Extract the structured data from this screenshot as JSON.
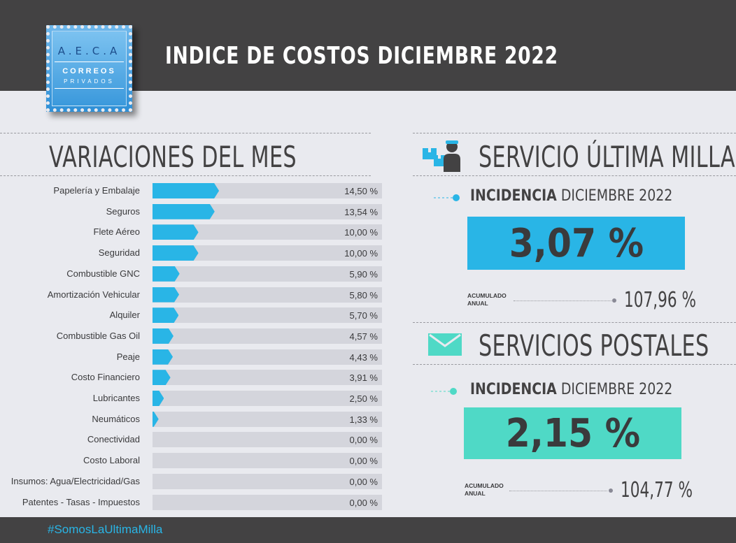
{
  "header": {
    "title": "INDICE DE COSTOS DICIEMBRE 2022",
    "logo": {
      "line1": "A.E.C.A",
      "line2": "CORREOS",
      "line3": "PRIVADOS"
    }
  },
  "variaciones": {
    "title": "VARIACIONES DEL MES"
  },
  "chart_data": {
    "type": "bar",
    "orientation": "horizontal",
    "title": "VARIACIONES DEL MES",
    "xlim": [
      0,
      50
    ],
    "bar_color": "#29b5e6",
    "track_color": "#d4d5dc",
    "categories": [
      "Papelería y Embalaje",
      "Seguros",
      "Flete Aéreo",
      "Seguridad",
      "Combustible GNC",
      "Amortización Vehicular",
      "Alquiler",
      "Combustible Gas Oil",
      "Peaje",
      "Costo Financiero",
      "Lubricantes",
      "Neumáticos",
      "Conectividad",
      "Costo Laboral",
      "Insumos: Agua/Electricidad/Gas",
      "Patentes - Tasas - Impuestos"
    ],
    "values": [
      14.5,
      13.54,
      10.0,
      10.0,
      5.9,
      5.8,
      5.7,
      4.57,
      4.43,
      3.91,
      2.5,
      1.33,
      0.0,
      0.0,
      0.0,
      0.0
    ],
    "value_labels": [
      "14,50 %",
      "13,54 %",
      "10,00 %",
      "10,00 %",
      "5,90 %",
      "5,80 %",
      "5,70 %",
      "4,57 %",
      "4,43 %",
      "3,91 %",
      "2,50 %",
      "1,33 %",
      "0,00 %",
      "0,00 %",
      "0,00 %",
      "0,00 %"
    ]
  },
  "ultima_milla": {
    "title": "SERVICIO ÚLTIMA MILLA",
    "icon": "delivery-person-icon",
    "incidencia_bold": "INCIDENCIA",
    "incidencia_rest": " DICIEMBRE 2022",
    "value": "3,07 %",
    "color": "#29b5e6",
    "acumulado_label_1": "ACUMULADO",
    "acumulado_label_2": "ANUAL",
    "acumulado_value": "107,96 %"
  },
  "postales": {
    "title": "SERVICIOS POSTALES",
    "icon": "envelope-icon",
    "incidencia_bold": "INCIDENCIA",
    "incidencia_rest": " DICIEMBRE 2022",
    "value": "2,15 %",
    "color": "#4fd9c6",
    "acumulado_label_1": "ACUMULADO",
    "acumulado_label_2": "ANUAL",
    "acumulado_value": "104,77 %"
  },
  "footer": {
    "hashtag": "#SomosLaUltimaMilla"
  }
}
